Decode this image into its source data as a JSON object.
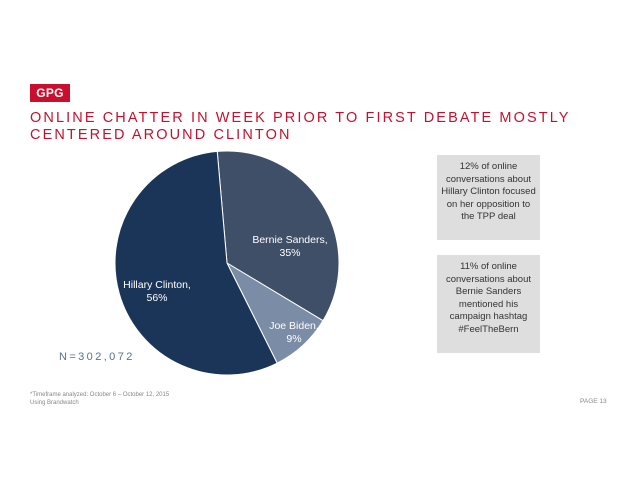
{
  "logo": {
    "text": "GPG"
  },
  "title": {
    "line1": "ONLINE CHATTER IN WEEK PRIOR TO FIRST DEBATE MOSTLY",
    "line2": "CENTERED AROUND CLINTON"
  },
  "chart_data": {
    "type": "pie",
    "slices": [
      {
        "label": "Bernie Sanders,",
        "pct_label": "35%",
        "value": 35,
        "color": "#3f4f68"
      },
      {
        "label": "Joe Biden,",
        "pct_label": "9%",
        "value": 9,
        "color": "#7b8ca6"
      },
      {
        "label": "Hillary Clinton,",
        "pct_label": "56%",
        "value": 56,
        "color": "#1b3558"
      }
    ],
    "sample_size": "N=302,072"
  },
  "callouts": [
    {
      "text": "12% of online conversations about Hillary Clinton focused on her opposition to the TPP deal"
    },
    {
      "text": "11% of online conversations about Bernie Sanders mentioned his campaign hashtag #FeelTheBern"
    }
  ],
  "footnote": {
    "line1": "*Timeframe analyzed: October 6 – October 12, 2015",
    "line2": "Using Brandwatch"
  },
  "page": {
    "label": "PAGE 13"
  }
}
